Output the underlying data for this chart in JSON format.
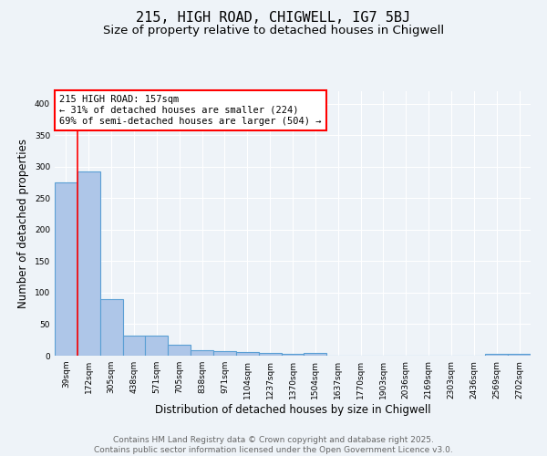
{
  "title": "215, HIGH ROAD, CHIGWELL, IG7 5BJ",
  "subtitle": "Size of property relative to detached houses in Chigwell",
  "xlabel": "Distribution of detached houses by size in Chigwell",
  "ylabel": "Number of detached properties",
  "categories": [
    "39sqm",
    "172sqm",
    "305sqm",
    "438sqm",
    "571sqm",
    "705sqm",
    "838sqm",
    "971sqm",
    "1104sqm",
    "1237sqm",
    "1370sqm",
    "1504sqm",
    "1637sqm",
    "1770sqm",
    "1903sqm",
    "2036sqm",
    "2169sqm",
    "2303sqm",
    "2436sqm",
    "2569sqm",
    "2702sqm"
  ],
  "values": [
    275,
    293,
    90,
    32,
    32,
    17,
    9,
    7,
    6,
    4,
    3,
    5,
    0,
    0,
    0,
    0,
    0,
    0,
    0,
    3,
    3
  ],
  "bar_color": "#aec6e8",
  "bar_edge_color": "#5a9fd4",
  "vline_color": "red",
  "annotation_text": "215 HIGH ROAD: 157sqm\n← 31% of detached houses are smaller (224)\n69% of semi-detached houses are larger (504) →",
  "annotation_box_color": "white",
  "annotation_box_edge_color": "red",
  "ylim": [
    0,
    420
  ],
  "yticks": [
    0,
    50,
    100,
    150,
    200,
    250,
    300,
    350,
    400
  ],
  "footer_line1": "Contains HM Land Registry data © Crown copyright and database right 2025.",
  "footer_line2": "Contains public sector information licensed under the Open Government Licence v3.0.",
  "bg_color": "#eef3f8",
  "grid_color": "white",
  "title_fontsize": 11,
  "subtitle_fontsize": 9.5,
  "axis_label_fontsize": 8.5,
  "tick_fontsize": 6.5,
  "annotation_fontsize": 7.5,
  "footer_fontsize": 6.5
}
